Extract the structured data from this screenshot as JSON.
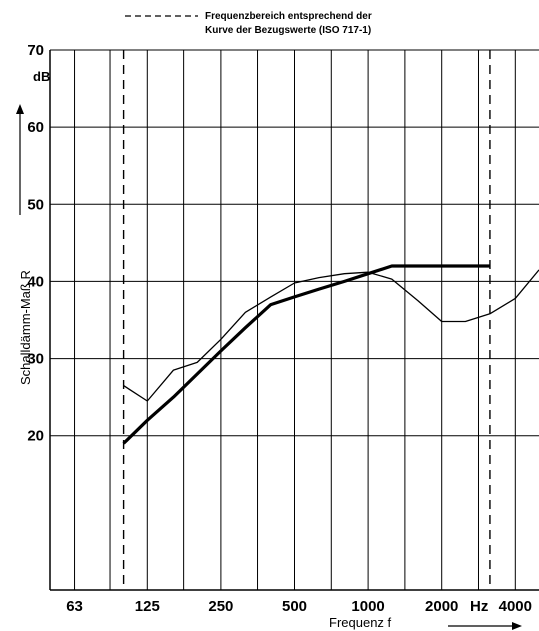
{
  "chart_data": {
    "type": "line",
    "title": "",
    "legend": {
      "line1": "Frequenzbereich entsprechend der",
      "line2": "Kurve der Bezugswerte (ISO 717-1)"
    },
    "xlabel": "Frequenz f",
    "ylabel": "Schalldämm-Maß R",
    "y_unit": "dB",
    "x_unit": "Hz",
    "x_scale": "log",
    "xlim": [
      50,
      5000
    ],
    "ylim": [
      0,
      70
    ],
    "x_ticks": [
      {
        "value": 63,
        "label": "63"
      },
      {
        "value": 125,
        "label": "125"
      },
      {
        "value": 250,
        "label": "250"
      },
      {
        "value": 500,
        "label": "500"
      },
      {
        "value": 1000,
        "label": "1000"
      },
      {
        "value": 2000,
        "label": "2000"
      },
      {
        "value": 4000,
        "label": "4000"
      }
    ],
    "y_ticks": [
      20,
      30,
      40,
      50,
      60,
      70
    ],
    "y_tick_labels": [
      "20",
      "30",
      "40",
      "50",
      "60",
      "70"
    ],
    "grid": true,
    "reference_range": [
      100,
      3150
    ],
    "series": [
      {
        "style": "thin",
        "color": "#000000",
        "x": [
          100,
          125,
          160,
          200,
          250,
          315,
          400,
          500,
          630,
          800,
          1000,
          1250,
          1600,
          2000,
          2500,
          3150,
          4000,
          5000
        ],
        "y": [
          26.5,
          24.5,
          28.5,
          29.5,
          32.5,
          36,
          38,
          39.8,
          40.5,
          41,
          41.2,
          40.3,
          37.5,
          34.8,
          34.8,
          35.8,
          37.8,
          41.5
        ]
      },
      {
        "style": "thick",
        "color": "#000000",
        "x": [
          100,
          125,
          160,
          200,
          250,
          315,
          400,
          500,
          630,
          800,
          1000,
          1250,
          1600,
          2000,
          2500,
          3150
        ],
        "y": [
          19,
          22,
          25,
          28,
          31,
          34,
          37,
          38,
          39,
          40,
          41,
          42,
          42,
          42,
          42,
          42
        ]
      }
    ]
  }
}
